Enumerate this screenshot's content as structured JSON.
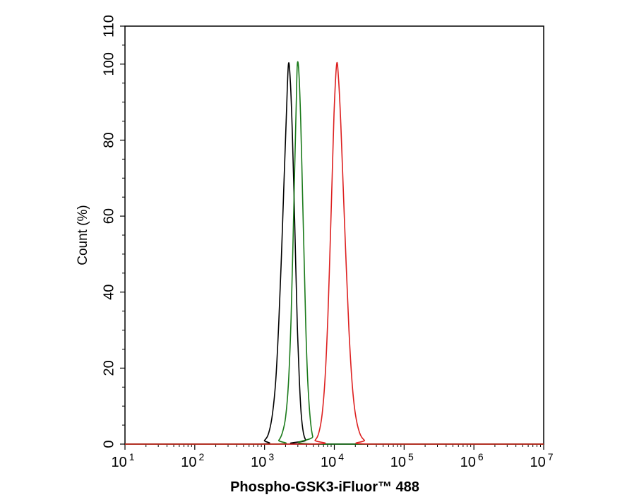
{
  "chart_data": {
    "type": "line",
    "title": "",
    "xlabel": "Phospho-GSK3-iFluor™ 488",
    "ylabel": "Count  (%)",
    "x_scale": "log",
    "xlim": [
      10,
      10000000
    ],
    "ylim": [
      0,
      110
    ],
    "grid": false,
    "legend": "none",
    "x_ticks": [
      {
        "base": "10",
        "exp": "1",
        "value": 10
      },
      {
        "base": "10",
        "exp": "2",
        "value": 100
      },
      {
        "base": "10",
        "exp": "3",
        "value": 1000
      },
      {
        "base": "10",
        "exp": "4",
        "value": 10000
      },
      {
        "base": "10",
        "exp": "5",
        "value": 100000
      },
      {
        "base": "10",
        "exp": "6",
        "value": 1000000
      },
      {
        "base": "10",
        "exp": "7",
        "value": 10000000
      }
    ],
    "y_ticks": [
      {
        "label": "0",
        "value": 0
      },
      {
        "label": "20",
        "value": 20
      },
      {
        "label": "40",
        "value": 40
      },
      {
        "label": "60",
        "value": 60
      },
      {
        "label": "80",
        "value": 80
      },
      {
        "label": "100",
        "value": 100
      },
      {
        "label": "110",
        "value": 110
      }
    ],
    "series": [
      {
        "color": "#000000",
        "peak_x": 2200,
        "points": [
          [
            800,
            0
          ],
          [
            1000,
            1
          ],
          [
            1150,
            3
          ],
          [
            1300,
            8
          ],
          [
            1450,
            17
          ],
          [
            1600,
            32
          ],
          [
            1750,
            50
          ],
          [
            1900,
            69
          ],
          [
            2050,
            86
          ],
          [
            2200,
            100
          ],
          [
            2350,
            95
          ],
          [
            2500,
            82
          ],
          [
            2650,
            65
          ],
          [
            2800,
            47
          ],
          [
            2950,
            31
          ],
          [
            3150,
            17
          ],
          [
            3350,
            8
          ],
          [
            3600,
            3
          ],
          [
            3900,
            1
          ],
          [
            4300,
            0
          ]
        ]
      },
      {
        "color": "#1a7a1a",
        "peak_x": 2950,
        "points": [
          [
            1350,
            0
          ],
          [
            1600,
            1
          ],
          [
            1800,
            3
          ],
          [
            2000,
            7
          ],
          [
            2200,
            16
          ],
          [
            2400,
            33
          ],
          [
            2550,
            52
          ],
          [
            2700,
            72
          ],
          [
            2850,
            90
          ],
          [
            2950,
            100
          ],
          [
            3100,
            98
          ],
          [
            3300,
            85
          ],
          [
            3500,
            66
          ],
          [
            3700,
            48
          ],
          [
            3900,
            31
          ],
          [
            4150,
            17
          ],
          [
            4500,
            7
          ],
          [
            4900,
            2
          ],
          [
            5500,
            0
          ]
        ]
      },
      {
        "color": "#dd2020",
        "peak_x": 10800,
        "points": [
          [
            4500,
            0
          ],
          [
            5300,
            1
          ],
          [
            6000,
            3
          ],
          [
            6700,
            8
          ],
          [
            7400,
            18
          ],
          [
            8100,
            34
          ],
          [
            8700,
            52
          ],
          [
            9300,
            70
          ],
          [
            9900,
            87
          ],
          [
            10800,
            100
          ],
          [
            11500,
            96
          ],
          [
            12400,
            84
          ],
          [
            13500,
            66
          ],
          [
            14800,
            47
          ],
          [
            16200,
            30
          ],
          [
            18000,
            16
          ],
          [
            20000,
            8
          ],
          [
            23000,
            3
          ],
          [
            27000,
            1
          ],
          [
            33000,
            0
          ]
        ]
      }
    ]
  }
}
